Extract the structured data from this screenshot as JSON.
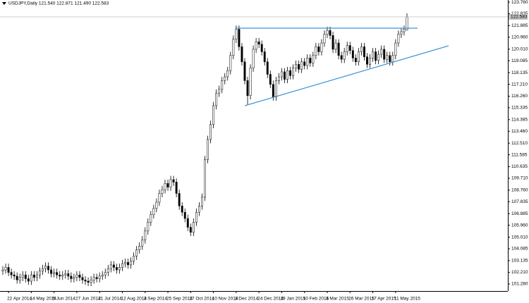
{
  "chart_data": {
    "type": "candlestick",
    "title": "USDJPY,Daily 121.540 122.871 121.490 122.583",
    "up_color": "#ffffff",
    "down_color": "#000000",
    "outline_color": "#000000",
    "categories": [
      null,
      null,
      "22 Apr 2014",
      null,
      null,
      null,
      null,
      null,
      null,
      null,
      "14 May 2014",
      null,
      null,
      null,
      null,
      null,
      null,
      null,
      "5 Jun 2014",
      null,
      null,
      null,
      null,
      null,
      null,
      null,
      "27 Jun 2014",
      null,
      null,
      null,
      null,
      null,
      null,
      null,
      "21 Jul 2014",
      null,
      null,
      null,
      null,
      null,
      null,
      null,
      "12 Aug 2014",
      null,
      null,
      null,
      null,
      null,
      null,
      null,
      "3 Sep 2014",
      null,
      null,
      null,
      null,
      null,
      null,
      null,
      "25 Sep 2014",
      null,
      null,
      null,
      null,
      null,
      null,
      null,
      "17 Oct 2014",
      null,
      null,
      null,
      null,
      null,
      null,
      null,
      "10 Nov 2014",
      null,
      null,
      null,
      null,
      null,
      null,
      null,
      "3 Dec 2014",
      null,
      null,
      null,
      null,
      null,
      null,
      null,
      "24 Dec 2014",
      null,
      null,
      null,
      null,
      null,
      null,
      null,
      "19 Jan 2015",
      null,
      null,
      null,
      null,
      null,
      null,
      null,
      "10 Feb 2015",
      null,
      null,
      null,
      null,
      null,
      null,
      null,
      "4 Mar 2015",
      null,
      null,
      null,
      null,
      null,
      null,
      null,
      "26 Mar 2015",
      null,
      null,
      null,
      null,
      null,
      null,
      null,
      "17 Apr 2015",
      null,
      null,
      null,
      null,
      null,
      null,
      null,
      "11 May 2015",
      null,
      null,
      null,
      null
    ],
    "open": [
      102.3,
      102.4,
      102.6,
      102.2,
      102.0,
      101.9,
      101.6,
      101.8,
      102.0,
      101.7,
      101.5,
      102.0,
      101.8,
      102.0,
      102.3,
      102.5,
      102.7,
      102.4,
      102.1,
      102.2,
      102.0,
      101.9,
      102.0,
      102.1,
      101.9,
      101.7,
      101.8,
      102.0,
      101.8,
      101.6,
      101.5,
      101.4,
      101.6,
      101.8,
      101.7,
      101.9,
      102.0,
      102.2,
      102.5,
      102.8,
      102.6,
      102.4,
      102.6,
      102.9,
      103.0,
      102.8,
      103.1,
      103.5,
      104.0,
      104.3,
      104.8,
      105.5,
      106.2,
      106.8,
      107.3,
      107.8,
      108.5,
      108.8,
      109.3,
      109.0,
      109.6,
      109.4,
      108.5,
      107.5,
      107.0,
      106.5,
      105.8,
      105.4,
      106.2,
      107.0,
      107.5,
      108.2,
      111.2,
      112.8,
      114.0,
      115.5,
      116.5,
      116.8,
      117.5,
      117.8,
      118.3,
      119.5,
      120.8,
      121.6,
      120.2,
      119.0,
      117.5,
      116.3,
      118.5,
      120.0,
      120.6,
      120.4,
      119.8,
      119.0,
      118.0,
      117.2,
      116.2,
      117.5,
      117.8,
      118.2,
      117.6,
      118.3,
      117.9,
      118.5,
      118.8,
      118.4,
      119.0,
      118.7,
      119.3,
      118.9,
      119.5,
      120.2,
      119.8,
      120.5,
      121.2,
      121.5,
      121.1,
      120.0,
      120.5,
      119.5,
      119.2,
      119.8,
      120.3,
      119.9,
      119.3,
      119.0,
      119.8,
      120.2,
      119.4,
      118.8,
      119.3,
      119.8,
      119.1,
      119.6,
      120.0,
      119.2,
      119.5,
      119.0,
      119.5,
      120.5,
      121.2,
      121.4,
      121.54
    ],
    "high": [
      102.7,
      102.9,
      102.9,
      102.5,
      102.3,
      102.2,
      102.1,
      102.3,
      102.3,
      102.0,
      102.3,
      102.3,
      102.3,
      102.6,
      102.8,
      103.0,
      103.0,
      102.7,
      102.5,
      102.5,
      102.3,
      102.3,
      102.4,
      102.4,
      102.2,
      102.1,
      102.3,
      102.3,
      102.1,
      101.9,
      101.8,
      101.9,
      102.1,
      102.1,
      102.2,
      102.3,
      102.5,
      102.8,
      103.1,
      103.1,
      102.9,
      102.9,
      103.2,
      103.3,
      103.3,
      103.4,
      103.8,
      104.3,
      104.6,
      105.1,
      105.8,
      106.5,
      107.1,
      107.6,
      108.1,
      108.8,
      109.1,
      109.6,
      109.6,
      109.9,
      109.9,
      109.7,
      108.8,
      107.8,
      107.3,
      106.8,
      106.1,
      106.5,
      107.3,
      107.8,
      108.5,
      111.5,
      113.1,
      114.3,
      115.8,
      116.8,
      117.1,
      117.8,
      118.1,
      118.6,
      119.8,
      121.1,
      121.9,
      121.9,
      120.5,
      119.3,
      117.8,
      118.8,
      120.3,
      120.9,
      120.9,
      120.7,
      120.1,
      119.3,
      118.3,
      117.5,
      117.8,
      118.1,
      118.5,
      118.5,
      118.6,
      118.6,
      118.8,
      119.1,
      119.1,
      119.3,
      119.3,
      119.6,
      119.6,
      119.8,
      120.5,
      120.5,
      120.8,
      121.5,
      121.8,
      121.8,
      121.4,
      120.8,
      120.8,
      119.8,
      120.1,
      120.6,
      120.6,
      120.2,
      119.6,
      120.1,
      120.5,
      120.5,
      119.7,
      119.6,
      120.1,
      120.1,
      119.9,
      120.3,
      120.3,
      119.8,
      119.8,
      119.8,
      120.8,
      121.5,
      121.7,
      121.9,
      122.871
    ],
    "low": [
      102.0,
      102.1,
      101.9,
      101.7,
      101.6,
      101.3,
      101.3,
      101.5,
      101.4,
      101.2,
      101.2,
      101.5,
      101.5,
      101.7,
      102.0,
      102.2,
      102.1,
      101.8,
      101.8,
      101.7,
      101.6,
      101.6,
      101.7,
      101.6,
      101.4,
      101.4,
      101.5,
      101.5,
      101.3,
      101.2,
      101.1,
      101.1,
      101.3,
      101.4,
      101.4,
      101.6,
      101.7,
      101.9,
      102.2,
      102.3,
      102.1,
      102.1,
      102.3,
      102.6,
      102.5,
      102.5,
      102.8,
      103.2,
      103.7,
      104.0,
      104.5,
      105.2,
      105.9,
      106.5,
      107.0,
      107.5,
      108.2,
      108.5,
      108.7,
      108.7,
      109.1,
      108.2,
      107.2,
      106.7,
      106.2,
      105.5,
      105.1,
      105.1,
      105.9,
      106.7,
      107.2,
      107.9,
      110.9,
      112.5,
      113.7,
      115.2,
      116.2,
      116.5,
      117.2,
      117.5,
      118.0,
      119.2,
      120.5,
      119.9,
      118.7,
      117.2,
      115.6,
      116.0,
      118.2,
      119.7,
      120.1,
      119.5,
      118.7,
      117.7,
      116.9,
      115.9,
      115.9,
      117.2,
      117.5,
      117.3,
      117.3,
      117.6,
      117.6,
      118.2,
      118.1,
      118.1,
      118.4,
      118.4,
      118.6,
      118.6,
      119.2,
      119.5,
      119.5,
      120.2,
      120.9,
      120.8,
      119.7,
      119.7,
      119.2,
      118.9,
      118.9,
      119.5,
      119.6,
      119.0,
      118.7,
      118.7,
      119.5,
      119.1,
      118.5,
      118.5,
      119.0,
      118.8,
      118.8,
      119.3,
      118.9,
      118.9,
      118.7,
      118.7,
      119.2,
      120.2,
      120.9,
      121.1,
      121.49
    ],
    "close": [
      102.4,
      102.6,
      102.2,
      102.0,
      101.9,
      101.6,
      101.8,
      102.0,
      101.7,
      101.5,
      102.0,
      101.8,
      102.0,
      102.3,
      102.5,
      102.7,
      102.4,
      102.1,
      102.2,
      102.0,
      101.9,
      102.0,
      102.1,
      101.9,
      101.7,
      101.8,
      102.0,
      101.8,
      101.6,
      101.5,
      101.4,
      101.6,
      101.8,
      101.7,
      101.9,
      102.0,
      102.2,
      102.5,
      102.8,
      102.6,
      102.4,
      102.6,
      102.9,
      103.0,
      102.8,
      103.1,
      103.5,
      104.0,
      104.3,
      104.8,
      105.5,
      106.2,
      106.8,
      107.3,
      107.8,
      108.5,
      108.8,
      109.3,
      109.0,
      109.6,
      109.4,
      108.5,
      107.5,
      107.0,
      106.5,
      105.8,
      105.4,
      106.2,
      107.0,
      107.5,
      108.2,
      111.2,
      112.8,
      114.0,
      115.5,
      116.5,
      116.8,
      117.5,
      117.8,
      118.3,
      119.5,
      120.8,
      121.6,
      120.2,
      119.0,
      117.5,
      116.3,
      118.5,
      120.0,
      120.6,
      120.4,
      119.8,
      119.0,
      118.0,
      117.2,
      116.2,
      117.5,
      117.8,
      118.2,
      117.6,
      118.3,
      117.9,
      118.5,
      118.8,
      118.4,
      119.0,
      118.7,
      119.3,
      118.9,
      119.5,
      120.2,
      119.8,
      120.5,
      121.2,
      121.5,
      121.1,
      120.0,
      120.5,
      119.5,
      119.2,
      119.8,
      120.3,
      119.9,
      119.3,
      119.0,
      119.8,
      120.2,
      119.4,
      118.8,
      119.3,
      119.8,
      119.1,
      119.6,
      120.0,
      119.2,
      119.5,
      119.0,
      119.5,
      120.5,
      121.2,
      121.4,
      121.6,
      122.583
    ],
    "ylim": [
      100.77,
      123.93
    ],
    "yticks": [
      {
        "value": 123.76,
        "label": "123.760"
      },
      122.835,
      121.885,
      {
        "value": 120.96,
        "label": "120.960"
      },
      {
        "value": 120.01,
        "label": "120.010"
      },
      119.085,
      118.135,
      {
        "value": 117.21,
        "label": "117.210"
      },
      {
        "value": 116.26,
        "label": "116.260"
      },
      115.335,
      114.385,
      {
        "value": 113.46,
        "label": "113.460"
      },
      {
        "value": 112.51,
        "label": "112.510"
      },
      111.585,
      110.635,
      {
        "value": 109.71,
        "label": "109.710"
      },
      {
        "value": 108.76,
        "label": "108.760"
      },
      107.835,
      106.885,
      {
        "value": 105.96,
        "label": "105.960"
      },
      {
        "value": 105.01,
        "label": "105.010"
      },
      104.085,
      103.135,
      {
        "value": 102.21,
        "label": "102.210"
      },
      {
        "value": 101.28,
        "label": "101.280"
      }
    ]
  }
}
